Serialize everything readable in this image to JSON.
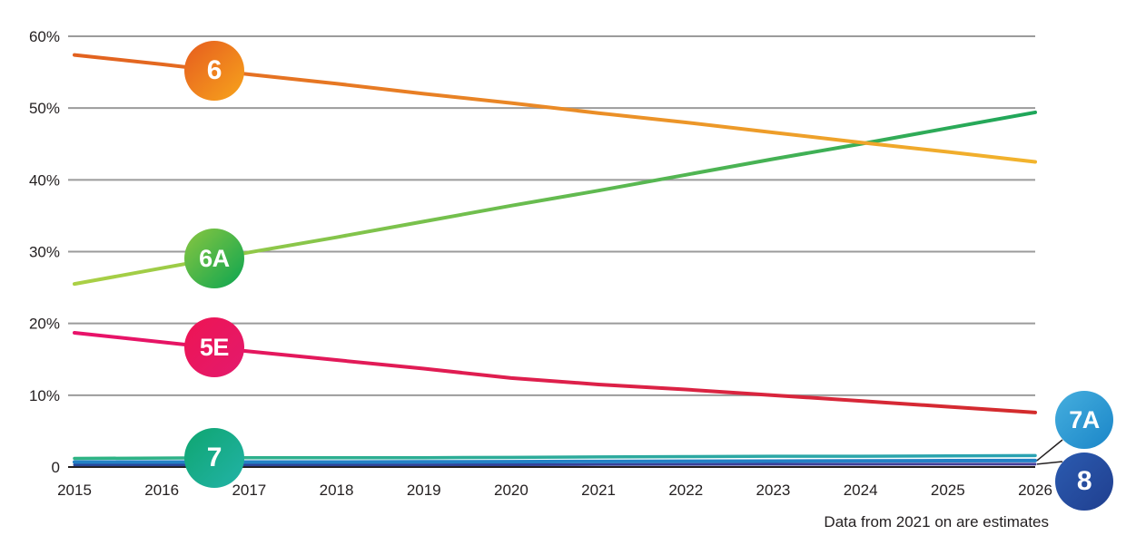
{
  "note": "Data from 2021 on are estimates",
  "chart_data": {
    "type": "line",
    "title": "",
    "xlabel": "",
    "ylabel": "",
    "x_labels": [
      "2015",
      "2016",
      "2017",
      "2018",
      "2019",
      "2020",
      "2021",
      "2022",
      "2023",
      "2024",
      "2025",
      "2026"
    ],
    "y_ticks": [
      0,
      10,
      20,
      30,
      40,
      50,
      60
    ],
    "y_tick_labels": [
      "0",
      "10%",
      "20%",
      "30%",
      "40%",
      "50%",
      "60%"
    ],
    "ylim": [
      0,
      62
    ],
    "grid": "horizontal",
    "grid_color": "#9b9b9b",
    "axis_color": "#231f20",
    "label_color": "#231f20",
    "annotation": "Data from 2021 on are estimates",
    "series": [
      {
        "name": "6",
        "values": [
          57.4,
          56.1,
          54.7,
          53.4,
          52.0,
          50.7,
          49.3,
          48.0,
          46.6,
          45.2,
          43.9,
          42.5
        ],
        "line_colors": [
          "#e2611f",
          "#f2b42d"
        ],
        "line_width": 4,
        "badge": {
          "label": "6",
          "placement": "inline",
          "anchor_year": 2016.6,
          "colors": [
            "#e65c1f",
            "#f7a41c"
          ]
        }
      },
      {
        "name": "6A",
        "values": [
          25.5,
          27.7,
          29.9,
          32.0,
          34.2,
          36.4,
          38.5,
          40.7,
          42.9,
          45.0,
          47.2,
          49.4
        ],
        "line_colors": [
          "#abd045",
          "#1ea65a"
        ],
        "line_width": 4,
        "badge": {
          "label": "6A",
          "placement": "inline",
          "anchor_year": 2016.6,
          "colors": [
            "#8ac640",
            "#0ba551"
          ]
        }
      },
      {
        "name": "5E",
        "values": [
          18.7,
          17.4,
          16.1,
          14.9,
          13.7,
          12.4,
          11.5,
          10.8,
          10.0,
          9.2,
          8.4,
          7.6
        ],
        "line_colors": [
          "#e8126a",
          "#d32c2c"
        ],
        "line_width": 4,
        "badge": {
          "label": "5E",
          "placement": "inline",
          "anchor_year": 2016.6,
          "colors": [
            "#ee1453",
            "#e31a6d"
          ]
        }
      },
      {
        "name": "7",
        "values": [
          1.2,
          1.25,
          1.3,
          1.3,
          1.3,
          1.35,
          1.4,
          1.45,
          1.5,
          1.5,
          1.55,
          1.6
        ],
        "line_colors": [
          "#2eb483",
          "#2aa2b2"
        ],
        "line_width": 3.5,
        "badge": {
          "label": "7",
          "placement": "inline",
          "anchor_year": 2016.6,
          "colors": [
            "#0fa56f",
            "#22b3a8"
          ]
        }
      },
      {
        "name": "7A",
        "values": [
          0.7,
          0.7,
          0.7,
          0.7,
          0.72,
          0.75,
          0.78,
          0.8,
          0.82,
          0.85,
          0.88,
          0.9
        ],
        "line_colors": [
          "#2381c5",
          "#2381c5"
        ],
        "line_width": 4,
        "badge": {
          "label": "7A",
          "placement": "right",
          "colors": [
            "#45aede",
            "#1b86c8"
          ]
        }
      },
      {
        "name": "8",
        "values": [
          0.3,
          0.3,
          0.3,
          0.3,
          0.3,
          0.32,
          0.34,
          0.36,
          0.38,
          0.38,
          0.4,
          0.4
        ],
        "line_colors": [
          "#27489c",
          "#433d99"
        ],
        "line_width": 3,
        "badge": {
          "label": "8",
          "placement": "right",
          "colors": [
            "#2b5bb0",
            "#203f8f"
          ]
        }
      }
    ]
  }
}
